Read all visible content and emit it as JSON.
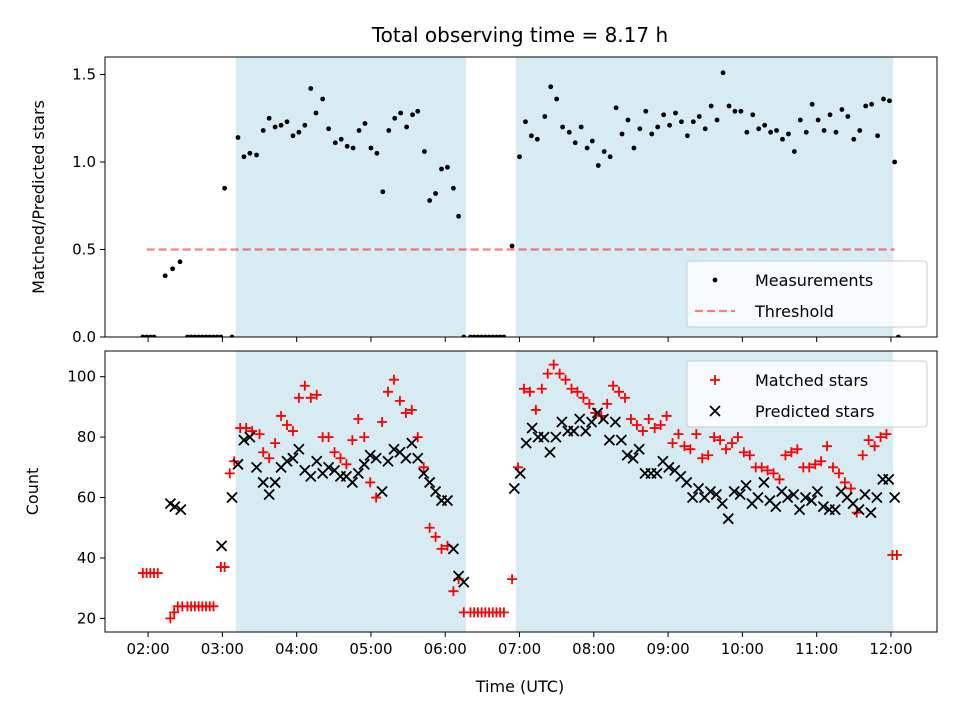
{
  "figure": {
    "title": "Total observing time = 8.17 h",
    "xlabel": "Time (UTC)",
    "background": "#ffffff"
  },
  "colors": {
    "observing_band": "#add8e6",
    "measurement": "#000000",
    "threshold": "#ff0000",
    "matched": "#ff0000",
    "predicted": "#000000"
  },
  "chart_data": [
    {
      "type": "scatter",
      "panel": "top",
      "ylabel": "Matched/Predicted stars",
      "xlim": [
        1.42,
        12.62
      ],
      "ylim": [
        0.0,
        1.6
      ],
      "xticks": [
        2,
        3,
        4,
        5,
        6,
        7,
        8,
        9,
        10,
        11,
        12
      ],
      "xticklabels": [
        "02:00",
        "03:00",
        "04:00",
        "05:00",
        "06:00",
        "07:00",
        "08:00",
        "09:00",
        "10:00",
        "11:00",
        "12:00"
      ],
      "yticks": [
        0.0,
        0.5,
        1.0,
        1.5
      ],
      "yticklabels": [
        "0.0",
        "0.5",
        "1.0",
        "1.5"
      ],
      "shaded_intervals": [
        [
          3.18,
          6.28
        ],
        [
          6.95,
          12.03
        ]
      ],
      "legend": {
        "placement": "lower-right",
        "entries": [
          "Measurements",
          "Threshold"
        ]
      },
      "series": [
        {
          "name": "Measurements",
          "marker": "dot",
          "x": [
            1.93,
            1.98,
            2.03,
            2.08,
            2.23,
            2.33,
            2.43,
            2.53,
            2.58,
            2.63,
            2.68,
            2.73,
            2.78,
            2.83,
            2.88,
            2.93,
            2.98,
            3.03,
            3.13,
            3.21,
            3.29,
            3.37,
            3.46,
            3.55,
            3.63,
            3.71,
            3.79,
            3.87,
            3.95,
            4.03,
            4.11,
            4.19,
            4.26,
            4.35,
            4.43,
            4.52,
            4.6,
            4.68,
            4.76,
            4.84,
            4.92,
            5.0,
            5.08,
            5.16,
            5.24,
            5.32,
            5.4,
            5.48,
            5.56,
            5.63,
            5.72,
            5.79,
            5.87,
            5.95,
            6.03,
            6.11,
            6.18,
            6.25,
            6.34,
            6.39,
            6.44,
            6.49,
            6.54,
            6.59,
            6.64,
            6.69,
            6.74,
            6.79,
            6.9,
            7.0,
            7.08,
            7.16,
            7.24,
            7.34,
            7.42,
            7.5,
            7.58,
            7.67,
            7.75,
            7.83,
            7.91,
            7.98,
            8.06,
            8.14,
            8.22,
            8.3,
            8.38,
            8.46,
            8.54,
            8.62,
            8.7,
            8.78,
            8.86,
            8.94,
            9.02,
            9.1,
            9.18,
            9.26,
            9.34,
            9.42,
            9.5,
            9.58,
            9.66,
            9.74,
            9.82,
            9.9,
            9.98,
            10.06,
            10.14,
            10.22,
            10.3,
            10.38,
            10.46,
            10.54,
            10.62,
            10.7,
            10.78,
            10.86,
            10.94,
            11.02,
            11.1,
            11.18,
            11.26,
            11.34,
            11.42,
            11.5,
            11.58,
            11.66,
            11.74,
            11.82,
            11.9,
            11.98,
            12.05,
            12.1
          ],
          "y": [
            0.0,
            0.0,
            0.0,
            0.0,
            0.35,
            0.39,
            0.43,
            0.0,
            0.0,
            0.0,
            0.0,
            0.0,
            0.0,
            0.0,
            0.0,
            0.0,
            0.0,
            0.85,
            0.0,
            1.14,
            1.03,
            1.05,
            1.04,
            1.18,
            1.25,
            1.2,
            1.21,
            1.23,
            1.15,
            1.17,
            1.21,
            1.42,
            1.28,
            1.36,
            1.19,
            1.11,
            1.13,
            1.09,
            1.08,
            1.18,
            1.22,
            1.08,
            1.05,
            0.83,
            1.18,
            1.25,
            1.28,
            1.2,
            1.27,
            1.29,
            1.06,
            0.78,
            0.82,
            0.96,
            0.97,
            0.85,
            0.69,
            0.0,
            0.0,
            0.0,
            0.0,
            0.0,
            0.0,
            0.0,
            0.0,
            0.0,
            0.0,
            0.0,
            0.52,
            1.03,
            1.23,
            1.15,
            1.13,
            1.26,
            1.43,
            1.36,
            1.2,
            1.17,
            1.11,
            1.2,
            1.08,
            1.12,
            0.98,
            1.06,
            1.03,
            1.31,
            1.16,
            1.24,
            1.08,
            1.19,
            1.29,
            1.16,
            1.2,
            1.27,
            1.21,
            1.28,
            1.23,
            1.15,
            1.23,
            1.26,
            1.19,
            1.32,
            1.24,
            1.51,
            1.32,
            1.29,
            1.29,
            1.17,
            1.27,
            1.19,
            1.21,
            1.17,
            1.18,
            1.13,
            1.16,
            1.06,
            1.24,
            1.17,
            1.33,
            1.24,
            1.18,
            1.27,
            1.17,
            1.3,
            1.26,
            1.13,
            1.18,
            1.32,
            1.33,
            1.15,
            1.36,
            1.35,
            1.0,
            0.0
          ]
        },
        {
          "name": "Threshold",
          "marker": "dashed-line",
          "x": [
            1.98,
            12.05
          ],
          "y": [
            0.5,
            0.5
          ]
        }
      ]
    },
    {
      "type": "scatter",
      "panel": "bottom",
      "ylabel": "Count",
      "xlim": [
        1.42,
        12.62
      ],
      "ylim": [
        15.5,
        108.5
      ],
      "xticks": [
        2,
        3,
        4,
        5,
        6,
        7,
        8,
        9,
        10,
        11,
        12
      ],
      "xticklabels": [
        "02:00",
        "03:00",
        "04:00",
        "05:00",
        "06:00",
        "07:00",
        "08:00",
        "09:00",
        "10:00",
        "11:00",
        "12:00"
      ],
      "yticks": [
        20,
        40,
        60,
        80,
        100
      ],
      "yticklabels": [
        "20",
        "40",
        "60",
        "80",
        "100"
      ],
      "shaded_intervals": [
        [
          3.18,
          6.28
        ],
        [
          6.95,
          12.03
        ]
      ],
      "legend": {
        "placement": "upper-right",
        "entries": [
          "Matched stars",
          "Predicted stars"
        ]
      },
      "series": [
        {
          "name": "Matched stars",
          "marker": "plus",
          "x": [
            1.93,
            1.98,
            2.03,
            2.08,
            2.13,
            2.3,
            2.35,
            2.4,
            2.46,
            2.53,
            2.58,
            2.63,
            2.68,
            2.73,
            2.78,
            2.83,
            2.88,
            2.98,
            3.03,
            3.1,
            3.16,
            3.24,
            3.32,
            3.4,
            3.5,
            3.55,
            3.63,
            3.71,
            3.79,
            3.87,
            3.95,
            4.03,
            4.11,
            4.19,
            4.27,
            4.35,
            4.43,
            4.51,
            4.59,
            4.67,
            4.75,
            4.83,
            4.91,
            4.99,
            5.07,
            5.15,
            5.23,
            5.31,
            5.39,
            5.47,
            5.55,
            5.63,
            5.71,
            5.79,
            5.87,
            5.95,
            6.03,
            6.11,
            6.18,
            6.25,
            6.34,
            6.39,
            6.44,
            6.49,
            6.54,
            6.59,
            6.64,
            6.69,
            6.74,
            6.79,
            6.9,
            6.98,
            7.06,
            7.14,
            7.22,
            7.3,
            7.38,
            7.46,
            7.54,
            7.62,
            7.7,
            7.78,
            7.86,
            7.94,
            8.02,
            8.1,
            8.18,
            8.26,
            8.34,
            8.42,
            8.5,
            8.58,
            8.66,
            8.74,
            8.82,
            8.9,
            8.98,
            9.06,
            9.14,
            9.22,
            9.3,
            9.38,
            9.46,
            9.54,
            9.62,
            9.7,
            9.78,
            9.86,
            9.94,
            10.02,
            10.1,
            10.18,
            10.26,
            10.34,
            10.42,
            10.5,
            10.58,
            10.66,
            10.74,
            10.82,
            10.9,
            10.98,
            11.06,
            11.14,
            11.22,
            11.3,
            11.38,
            11.46,
            11.54,
            11.62,
            11.7,
            11.78,
            11.86,
            11.94,
            12.02,
            12.08
          ],
          "y": [
            35,
            35,
            35,
            35,
            35,
            20,
            22,
            24,
            24,
            24,
            24,
            24,
            24,
            24,
            24,
            24,
            24,
            37,
            37,
            68,
            72,
            83,
            83,
            82,
            81,
            75,
            73,
            78,
            87,
            84,
            82,
            93,
            97,
            93,
            94,
            80,
            80,
            75,
            73,
            71,
            79,
            86,
            80,
            65,
            60,
            85,
            95,
            99,
            92,
            88,
            89,
            80,
            70,
            50,
            47,
            43,
            44,
            29,
            33,
            22,
            22,
            22,
            22,
            22,
            22,
            22,
            22,
            22,
            22,
            22,
            33,
            70,
            96,
            95,
            89,
            96,
            101,
            104,
            101,
            99,
            96,
            95,
            93,
            91,
            88,
            87,
            91,
            97,
            95,
            93,
            86,
            84,
            82,
            86,
            83,
            84,
            87,
            78,
            81,
            77,
            76,
            81,
            73,
            74,
            80,
            79,
            76,
            78,
            80,
            75,
            74,
            70,
            70,
            69,
            68,
            66,
            74,
            75,
            76,
            70,
            70,
            71,
            72,
            77,
            70,
            68,
            65,
            63,
            55,
            74,
            79,
            77,
            80,
            81,
            41,
            41
          ],
          "extra_points": []
        },
        {
          "name": "Predicted stars",
          "marker": "x",
          "x": [
            2.3,
            2.36,
            2.44,
            2.99,
            3.13,
            3.21,
            3.29,
            3.37,
            3.46,
            3.55,
            3.63,
            3.71,
            3.79,
            3.87,
            3.95,
            4.03,
            4.11,
            4.19,
            4.27,
            4.35,
            4.43,
            4.51,
            4.59,
            4.67,
            4.75,
            4.83,
            4.91,
            4.99,
            5.07,
            5.15,
            5.23,
            5.31,
            5.39,
            5.47,
            5.55,
            5.63,
            5.71,
            5.79,
            5.87,
            5.95,
            6.03,
            6.11,
            6.18,
            6.25,
            6.93,
            7.01,
            7.09,
            7.17,
            7.25,
            7.33,
            7.41,
            7.49,
            7.57,
            7.65,
            7.73,
            7.81,
            7.89,
            7.97,
            8.05,
            8.13,
            8.21,
            8.29,
            8.37,
            8.45,
            8.53,
            8.61,
            8.69,
            8.77,
            8.85,
            8.93,
            9.01,
            9.09,
            9.17,
            9.25,
            9.33,
            9.41,
            9.49,
            9.57,
            9.65,
            9.73,
            9.81,
            9.89,
            9.97,
            10.05,
            10.13,
            10.21,
            10.29,
            10.37,
            10.45,
            10.53,
            10.61,
            10.69,
            10.77,
            10.85,
            10.93,
            11.01,
            11.09,
            11.17,
            11.25,
            11.33,
            11.41,
            11.49,
            11.57,
            11.65,
            11.73,
            11.81,
            11.89,
            11.97,
            12.05
          ],
          "y": [
            58,
            57,
            56,
            44,
            60,
            71,
            79,
            80,
            70,
            65,
            61,
            65,
            70,
            72,
            73,
            76,
            69,
            67,
            72,
            68,
            70,
            69,
            67,
            67,
            65,
            68,
            71,
            74,
            73,
            62,
            72,
            76,
            75,
            73,
            78,
            73,
            68,
            65,
            62,
            59,
            59,
            43,
            34,
            32,
            63,
            68,
            78,
            83,
            80,
            80,
            75,
            80,
            85,
            82,
            82,
            86,
            82,
            85,
            88,
            86,
            79,
            85,
            79,
            74,
            73,
            76,
            68,
            68,
            68,
            72,
            70,
            69,
            67,
            65,
            60,
            63,
            60,
            62,
            61,
            58,
            53,
            62,
            61,
            64,
            58,
            60,
            65,
            59,
            57,
            62,
            60,
            61,
            56,
            60,
            59,
            62,
            57,
            56,
            56,
            62,
            60,
            58,
            56,
            61,
            55,
            60,
            66,
            66,
            60
          ]
        }
      ]
    }
  ]
}
